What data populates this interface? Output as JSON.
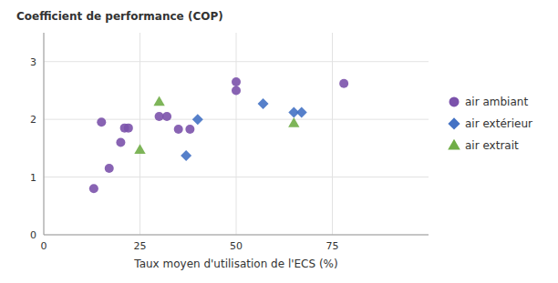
{
  "chart_data": {
    "type": "scatter",
    "xlabel": "Taux moyen d'utilisation de l'ECS (%)",
    "ylabel": "Coefficient de performance (COP)",
    "series": [
      {
        "name": "air ambiant",
        "color": "#7B52AB",
        "marker": "circle",
        "x": [
          13,
          15,
          17,
          20,
          21,
          22,
          30,
          32,
          35,
          38,
          50,
          50,
          78
        ],
        "values": [
          0.8,
          1.95,
          1.15,
          1.6,
          1.85,
          1.85,
          2.05,
          2.05,
          1.83,
          1.83,
          2.65,
          2.5,
          2.62
        ]
      },
      {
        "name": "air extérieur",
        "color": "#4472C4",
        "marker": "diamond",
        "x": [
          37,
          40,
          57,
          65,
          67
        ],
        "values": [
          1.37,
          2.0,
          2.27,
          2.12,
          2.12
        ]
      },
      {
        "name": "air extrait",
        "color": "#70AD47",
        "marker": "triangle",
        "x": [
          25,
          30,
          65
        ],
        "values": [
          1.47,
          2.3,
          1.93
        ]
      }
    ],
    "xlim": [
      0,
      100
    ],
    "ylim": [
      0,
      3.5
    ],
    "xticks": [
      0,
      25,
      50,
      75
    ],
    "yticks": [
      0,
      1,
      2,
      3
    ],
    "grid": true,
    "legend": "right"
  }
}
